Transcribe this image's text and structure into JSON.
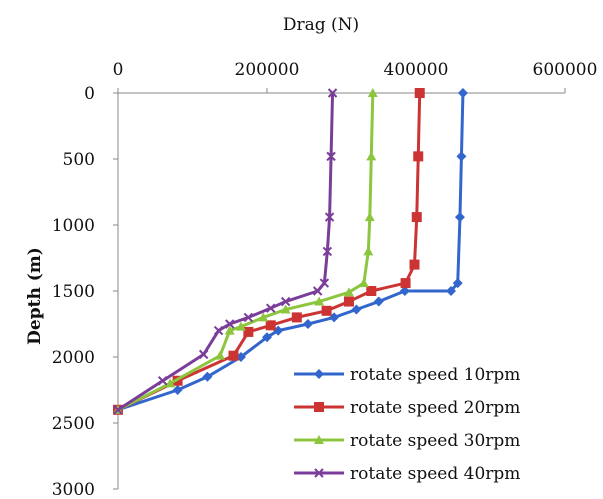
{
  "chart_data": {
    "type": "line",
    "title": "",
    "xlabel": "Drag (N)",
    "ylabel": "Depth (m)",
    "xlim": [
      0,
      600000
    ],
    "ylim": [
      0,
      3000
    ],
    "x_axis_position": "top",
    "y_axis_inverted": true,
    "x_ticks": [
      0,
      200000,
      400000,
      600000
    ],
    "x_tick_labels": [
      "0",
      "200000",
      "400000",
      "600000"
    ],
    "y_ticks": [
      0,
      500,
      1000,
      1500,
      2000,
      2500,
      3000
    ],
    "y_tick_labels": [
      "0",
      "500",
      "1000",
      "1500",
      "2000",
      "2500",
      "3000"
    ],
    "grid": false,
    "legend_position": "bottom-right",
    "series": [
      {
        "name": "rotate speed 10rpm",
        "color": "#3366cc",
        "marker": "diamond",
        "points": [
          [
            463000,
            0
          ],
          [
            461000,
            480
          ],
          [
            459000,
            940
          ],
          [
            456000,
            1440
          ],
          [
            447000,
            1500
          ],
          [
            385000,
            1500
          ],
          [
            350000,
            1580
          ],
          [
            320000,
            1640
          ],
          [
            290000,
            1700
          ],
          [
            255000,
            1750
          ],
          [
            215000,
            1800
          ],
          [
            200000,
            1850
          ],
          [
            165000,
            2000
          ],
          [
            120000,
            2150
          ],
          [
            80000,
            2250
          ],
          [
            0,
            2400
          ]
        ]
      },
      {
        "name": "rotate speed 20rpm",
        "color": "#cc3333",
        "marker": "square",
        "points": [
          [
            405000,
            0
          ],
          [
            403000,
            480
          ],
          [
            401000,
            940
          ],
          [
            398000,
            1300
          ],
          [
            386000,
            1440
          ],
          [
            340000,
            1500
          ],
          [
            310000,
            1580
          ],
          [
            280000,
            1650
          ],
          [
            240000,
            1700
          ],
          [
            205000,
            1760
          ],
          [
            175000,
            1810
          ],
          [
            155000,
            1990
          ],
          [
            80000,
            2180
          ],
          [
            0,
            2400
          ]
        ]
      },
      {
        "name": "rotate speed 30rpm",
        "color": "#8cc63f",
        "marker": "triangle",
        "points": [
          [
            342000,
            0
          ],
          [
            340000,
            480
          ],
          [
            338000,
            940
          ],
          [
            336000,
            1200
          ],
          [
            330000,
            1440
          ],
          [
            310000,
            1510
          ],
          [
            270000,
            1580
          ],
          [
            225000,
            1640
          ],
          [
            195000,
            1700
          ],
          [
            165000,
            1770
          ],
          [
            150000,
            1800
          ],
          [
            137000,
            1990
          ],
          [
            70000,
            2200
          ],
          [
            0,
            2400
          ]
        ]
      },
      {
        "name": "rotate speed 40rpm",
        "color": "#7a3d99",
        "marker": "x",
        "points": [
          [
            288000,
            0
          ],
          [
            286000,
            480
          ],
          [
            284000,
            940
          ],
          [
            281000,
            1200
          ],
          [
            277000,
            1440
          ],
          [
            268000,
            1500
          ],
          [
            225000,
            1580
          ],
          [
            205000,
            1630
          ],
          [
            175000,
            1700
          ],
          [
            150000,
            1750
          ],
          [
            135000,
            1800
          ],
          [
            115000,
            1980
          ],
          [
            60000,
            2180
          ],
          [
            0,
            2400
          ]
        ]
      }
    ]
  }
}
